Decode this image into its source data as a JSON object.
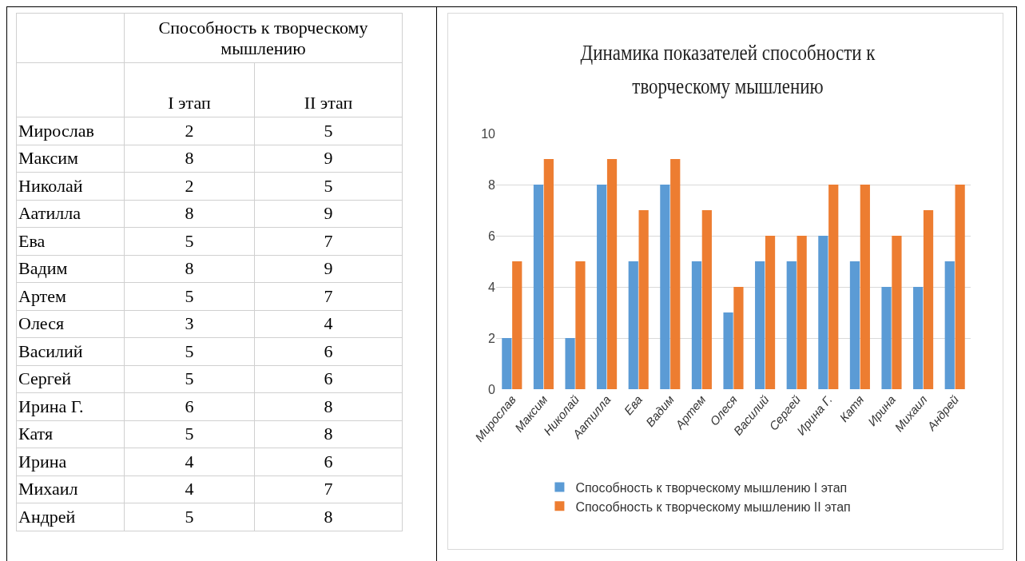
{
  "chart_data": [
    {
      "type": "other",
      "title": "Способность к творческому мышлению",
      "data_labels": true,
      "categories": [
        "Мирослав",
        "Максим",
        "Николай",
        "Аатилла",
        "Ева",
        "Вадим",
        "Артем",
        "Олеся",
        "Василий",
        "Сергей",
        "Ирина Г.",
        "Катя",
        "Ирина",
        "Михаил",
        "Андрей"
      ],
      "series": [
        {
          "name": "I этап",
          "values": [
            2,
            8,
            2,
            8,
            5,
            8,
            5,
            3,
            5,
            5,
            6,
            5,
            4,
            4,
            5
          ]
        },
        {
          "name": "II этап",
          "values": [
            5,
            9,
            5,
            9,
            7,
            9,
            7,
            4,
            6,
            6,
            8,
            8,
            6,
            7,
            8
          ]
        }
      ]
    },
    {
      "type": "bar",
      "title": "Динамика показателей способности к творческому мышлению",
      "categories": [
        "Мирослав",
        "Максим",
        "Николай",
        "Аатилла",
        "Ева",
        "Вадим",
        "Артем",
        "Олеся",
        "Василий",
        "Сергей",
        "Ирина Г.",
        "Катя",
        "Ирина",
        "Михаил",
        "Андрей"
      ],
      "series": [
        {
          "name": "Способность к творческому мышлению I этап",
          "color": "#5b9bd5",
          "values": [
            2,
            8,
            2,
            8,
            5,
            8,
            5,
            3,
            5,
            5,
            6,
            5,
            4,
            4,
            5
          ]
        },
        {
          "name": "Способность к творческому мышлению II этап",
          "color": "#ed7d31",
          "values": [
            5,
            9,
            5,
            9,
            7,
            9,
            7,
            4,
            6,
            6,
            8,
            8,
            6,
            7,
            8
          ]
        }
      ],
      "ylim": [
        0,
        10
      ],
      "yticks": [
        0,
        2,
        4,
        6,
        8,
        10
      ],
      "grid": "y",
      "legend": "bottom"
    }
  ]
}
